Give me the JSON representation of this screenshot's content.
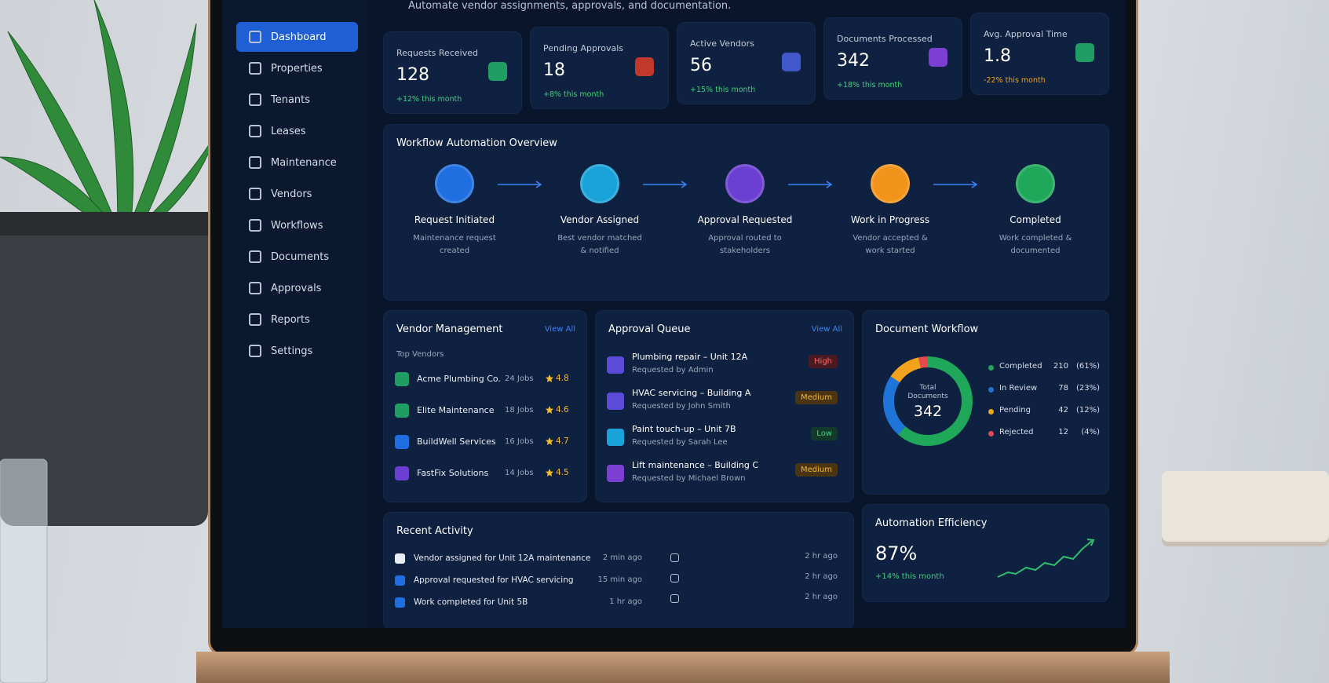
{
  "sidebar": {
    "items": [
      "Dashboard",
      "Properties",
      "Tenants",
      "Leases",
      "Maintenance",
      "Vendors",
      "Workflows",
      "Documents",
      "Approvals",
      "Reports",
      "Settings"
    ]
  },
  "header": {
    "subtitle": "Automate vendor assignments, approvals, and documentation."
  },
  "stats": [
    {
      "label": "Requests Received",
      "value": 128,
      "change": "+12% this month"
    },
    {
      "label": "Pending Approvals",
      "value": 18,
      "change": "+8% this month"
    },
    {
      "label": "Active Vendors",
      "value": 56,
      "change": "+15% this month"
    },
    {
      "label": "Documents Processed",
      "value": 342,
      "change": "+18% this month"
    },
    {
      "label": "Avg. Approval Time",
      "value": 1.8,
      "change": "-22% this month"
    }
  ],
  "workflow": {
    "title": "Workflow Automation Overview",
    "steps": [
      {
        "title": "Request Initiated",
        "desc": "Maintenance request created"
      },
      {
        "title": "Vendor Assigned",
        "desc": "Best vendor matched & notified"
      },
      {
        "title": "Approval Requested",
        "desc": "Approval routed to stakeholders"
      },
      {
        "title": "Work in Progress",
        "desc": "Vendor accepted & work started"
      },
      {
        "title": "Completed",
        "desc": "Work completed & documented"
      }
    ]
  },
  "vendor_management": {
    "title": "Vendor Management",
    "action": "View All",
    "subtitle": "Top Vendors",
    "vendors": [
      {
        "name": "Acme Plumbing Co.",
        "jobs": "24 Jobs",
        "rating": 4.8
      },
      {
        "name": "Elite Maintenance",
        "jobs": "18 Jobs",
        "rating": 4.6
      },
      {
        "name": "BuildWell Services",
        "jobs": "16 Jobs",
        "rating": 4.7
      },
      {
        "name": "FastFix Solutions",
        "jobs": "14 Jobs",
        "rating": 4.5
      }
    ]
  },
  "approval_queue": {
    "title": "Approval Queue",
    "action": "View All",
    "items": [
      {
        "title": "Plumbing repair – Unit 12A",
        "requester": "Requested by Admin",
        "priority": "High"
      },
      {
        "title": "HVAC servicing – Building A",
        "requester": "Requested by John Smith",
        "priority": "Medium"
      },
      {
        "title": "Paint touch-up – Unit 7B",
        "requester": "Requested by Sarah Lee",
        "priority": "Low"
      },
      {
        "title": "Lift maintenance – Building C",
        "requester": "Requested by Michael Brown",
        "priority": "Medium"
      }
    ]
  },
  "document_workflow": {
    "title": "Document Workflow",
    "total_label": "Total Documents",
    "total": 342,
    "items": [
      {
        "label": "Completed",
        "count": 210,
        "share": "(61%)",
        "color": "#1fa75a"
      },
      {
        "label": "In Review",
        "count": 78,
        "share": "(23%)",
        "color": "#1f74d8"
      },
      {
        "label": "Pending",
        "count": 42,
        "share": "(12%)",
        "color": "#f2a21b"
      },
      {
        "label": "Rejected",
        "count": 12,
        "share": "(4%)",
        "color": "#e5484d"
      }
    ]
  },
  "automation_efficiency": {
    "title": "Automation Efficiency",
    "value": "87%",
    "change": "+14% this month"
  },
  "recent_activity": {
    "title": "Recent Activity",
    "items": [
      {
        "text": "Vendor assigned for Unit 12A maintenance",
        "time": "2 min ago"
      },
      {
        "text": "Approval requested for HVAC servicing",
        "time": "15 min ago"
      },
      {
        "text": "Work completed for Unit 5B",
        "time": "1 hr ago"
      }
    ],
    "extra_times": [
      "2 hr ago",
      "2 hr ago",
      "2 hr ago"
    ]
  }
}
